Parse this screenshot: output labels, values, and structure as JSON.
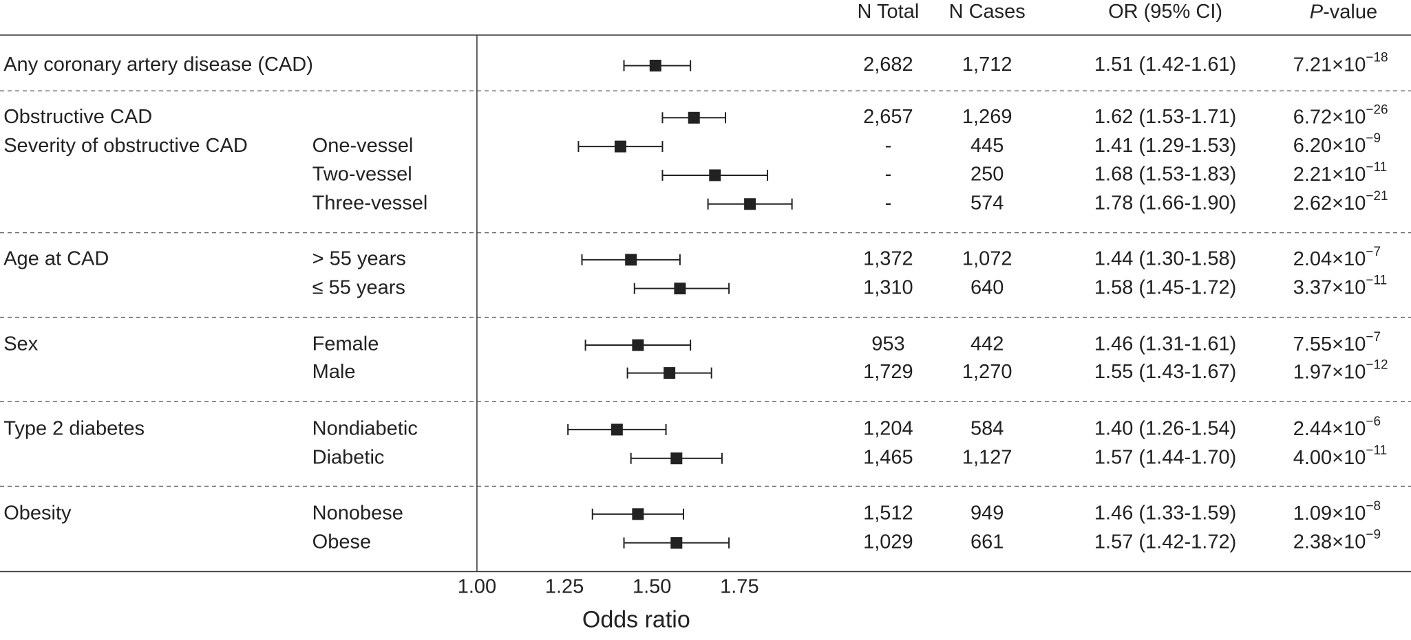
{
  "chart_data": {
    "type": "forest",
    "column_headers": [
      "N Total",
      "N Cases",
      "OR (95% CI)"
    ],
    "p_header_italic": "P",
    "p_header_rest": "-value",
    "xlabel": "Odds ratio",
    "xlim": [
      1.0,
      2.0
    ],
    "xticks": [
      {
        "value": 1.0,
        "label": "1.00"
      },
      {
        "value": 1.25,
        "label": "1.25"
      },
      {
        "value": 1.5,
        "label": "1.50"
      },
      {
        "value": 1.75,
        "label": "1.75"
      }
    ],
    "labels": [
      "Any coronary artery disease (CAD)",
      "Obstructive CAD",
      "Severity of obstructive CAD",
      null,
      null,
      "Age at CAD",
      null,
      "Sex",
      null,
      "Type 2 diabetes",
      null,
      "Obesity",
      null
    ],
    "sublabels": [
      null,
      null,
      "One-vessel",
      "Two-vessel",
      "Three-vessel",
      "> 55 years",
      "≤ 55 years",
      "Female",
      "Male",
      "Nondiabetic",
      "Diabetic",
      "Nonobese",
      "Obese"
    ],
    "n_total": [
      "2,682",
      "2,657",
      "-",
      "-",
      "-",
      "1,372",
      "1,310",
      "953",
      "1,729",
      "1,204",
      "1,465",
      "1,512",
      "1,029"
    ],
    "n_cases": [
      "1,712",
      "1,269",
      "445",
      "250",
      "574",
      "1,072",
      "640",
      "442",
      "1,270",
      "584",
      "1,127",
      "949",
      "661"
    ],
    "values": [
      1.51,
      1.62,
      1.41,
      1.68,
      1.78,
      1.44,
      1.58,
      1.46,
      1.55,
      1.4,
      1.57,
      1.46,
      1.57
    ],
    "ci_low": [
      1.42,
      1.53,
      1.29,
      1.53,
      1.66,
      1.3,
      1.45,
      1.31,
      1.43,
      1.26,
      1.44,
      1.33,
      1.42
    ],
    "ci_high": [
      1.61,
      1.71,
      1.53,
      1.83,
      1.9,
      1.58,
      1.72,
      1.61,
      1.67,
      1.54,
      1.7,
      1.59,
      1.72
    ],
    "value_labels": [
      "1.51 (1.42-1.61)",
      "1.62 (1.53-1.71)",
      "1.41 (1.29-1.53)",
      "1.68 (1.53-1.83)",
      "1.78 (1.66-1.90)",
      "1.44 (1.30-1.58)",
      "1.58 (1.45-1.72)",
      "1.46 (1.31-1.61)",
      "1.55 (1.43-1.67)",
      "1.40 (1.26-1.54)",
      "1.57 (1.44-1.70)",
      "1.46 (1.33-1.59)",
      "1.57 (1.42-1.72)"
    ],
    "p_mantissa": [
      "7.21×10",
      "6.72×10",
      "6.20×10",
      "2.21×10",
      "2.62×10",
      "2.04×10",
      "3.37×10",
      "7.55×10",
      "1.97×10",
      "2.44×10",
      "4.00×10",
      "1.09×10",
      "2.38×10"
    ],
    "p_exponent": [
      "−18",
      "−26",
      "−9",
      "−11",
      "−21",
      "−7",
      "−11",
      "−7",
      "−12",
      "−6",
      "−11",
      "−8",
      "−9"
    ],
    "color": "#222222"
  }
}
